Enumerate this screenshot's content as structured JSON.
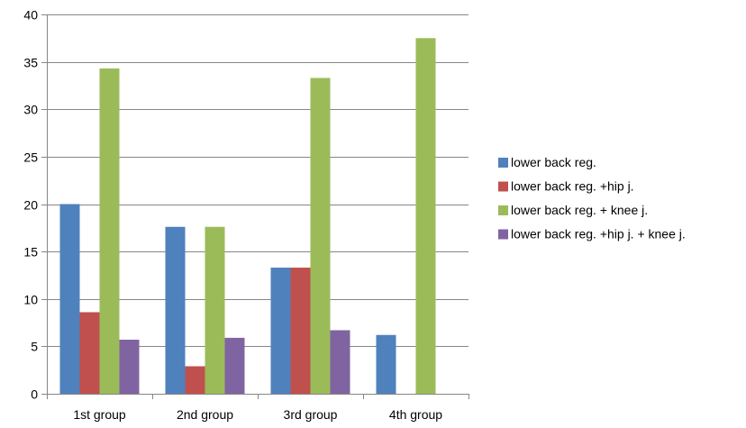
{
  "chart_data": {
    "type": "bar",
    "title": "",
    "xlabel": "",
    "ylabel": "",
    "categories": [
      "1st group",
      "2nd group",
      "3rd group",
      "4th group"
    ],
    "series": [
      {
        "name": "lower back reg.",
        "color": "#4F81BD",
        "values": [
          20,
          17.6,
          13.3,
          6.2
        ]
      },
      {
        "name": "lower back reg. +hip j.",
        "color": "#C0504D",
        "values": [
          8.6,
          2.9,
          13.3,
          0
        ]
      },
      {
        "name": "lower back reg. + knee j.",
        "color": "#9BBB59",
        "values": [
          34.3,
          17.6,
          33.3,
          37.5
        ]
      },
      {
        "name": "lower back reg. +hip j. + knee j.",
        "color": "#8064A2",
        "values": [
          5.7,
          5.9,
          6.7,
          0
        ]
      }
    ],
    "ylim": [
      0,
      40
    ],
    "yticks": [
      0,
      5,
      10,
      15,
      20,
      25,
      30,
      35,
      40
    ],
    "grid": true,
    "legend_position": "right"
  }
}
